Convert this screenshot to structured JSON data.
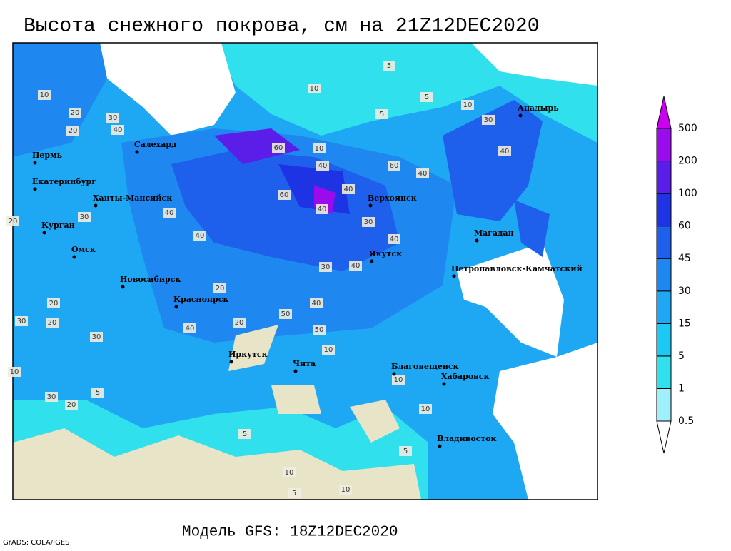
{
  "header": {
    "title": "Высота снежного покрова, см на 21Z12DEC2020"
  },
  "footer": {
    "model": "Модель GFS: 18Z12DEC2020",
    "credit": "GrADS: COLA/IGES"
  },
  "legend": {
    "levels": [
      0.5,
      1,
      5,
      15,
      30,
      45,
      60,
      100,
      200,
      500
    ],
    "colors": [
      "#ffffff",
      "#a0f0fc",
      "#30e0ec",
      "#1cc8f4",
      "#1ea8f4",
      "#1e88f0",
      "#1e60ec",
      "#1e34e4",
      "#5a1ee8",
      "#9a0cec",
      "#cc00ee"
    ]
  },
  "cities": [
    "Салехард",
    "Пермь",
    "Екатеринбург",
    "Ханты-Мансийск",
    "Курган",
    "Омск",
    "Новосибирск",
    "Красноярск",
    "Иркутск",
    "Чита",
    "Верхоянск",
    "Якутск",
    "Магадан",
    "Петропавловск-Камчатский",
    "Анадырь",
    "Благовещенск",
    "Хабаровск",
    "Владивосток"
  ],
  "contour_labels": [
    10,
    20,
    20,
    30,
    40,
    10,
    20,
    30,
    40,
    40,
    60,
    40,
    10,
    40,
    60,
    40,
    60,
    30,
    40,
    40,
    30,
    50,
    40,
    20,
    10,
    5,
    5,
    10,
    10,
    30,
    20,
    20,
    30,
    40,
    20,
    40,
    30,
    10,
    5,
    5,
    10,
    5,
    10,
    5,
    5,
    10,
    20,
    30,
    50,
    40
  ]
}
